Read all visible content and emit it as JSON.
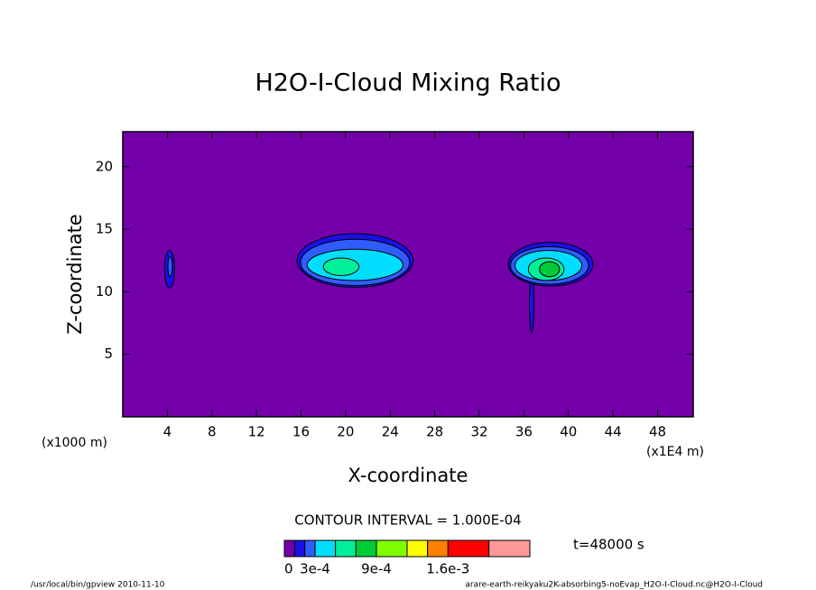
{
  "chart_data": {
    "type": "contour",
    "title": "H2O-I-Cloud Mixing Ratio",
    "xlabel": "X-coordinate",
    "ylabel": "Z-coordinate",
    "x_unit_left": "(x1000 m)",
    "x_unit_right": "(x1E4 m)",
    "contour_interval": "CONTOUR INTERVAL = 1.000E-04",
    "time": "t=48000 s",
    "footer_left": "/usr/local/bin/gpview  2010-11-10",
    "footer_right": "arare-earth-reikyaku2K-absorbing5-noEvap_H2O-I-Cloud.nc@H2O-I-Cloud",
    "xlim": [
      0,
      51.2
    ],
    "ylim": [
      0,
      22.8
    ],
    "xticks": [
      4,
      8,
      12,
      16,
      20,
      24,
      28,
      32,
      36,
      40,
      44,
      48
    ],
    "yticks": [
      5,
      10,
      15,
      20
    ],
    "levels": [
      0,
      0.0001,
      0.0002,
      0.0003,
      0.0005,
      0.0007,
      0.0009,
      0.0012,
      0.0014,
      0.0016,
      0.002,
      0.0024
    ],
    "colors": [
      "#7400aa",
      "#1a10e6",
      "#2f5cff",
      "#00ddff",
      "#00f09a",
      "#00cc3a",
      "#80ff00",
      "#ffff00",
      "#ff8000",
      "#ff0000",
      "#ff9999"
    ],
    "colorbar_ticks": [
      0,
      {
        "value": 0.0003,
        "label": "3e-4"
      },
      {
        "value": 0.0009,
        "label": "9e-4"
      },
      {
        "value": 0.0016,
        "label": "1.6e-3"
      }
    ],
    "regions": [
      {
        "x": 4.2,
        "z": 11.8,
        "rx": 0.45,
        "rz": 1.5,
        "value": 0.00015
      },
      {
        "x": 4.25,
        "z": 12.0,
        "rx": 0.2,
        "rz": 0.8,
        "value": 0.00025
      },
      {
        "x": 20.85,
        "z": 12.5,
        "rx": 5.2,
        "rz": 2.15,
        "value": 0.00015
      },
      {
        "x": 20.85,
        "z": 12.35,
        "rx": 4.9,
        "rz": 1.85,
        "value": 0.00025
      },
      {
        "x": 20.85,
        "z": 12.15,
        "rx": 4.3,
        "rz": 1.25,
        "value": 0.0004
      },
      {
        "x": 19.6,
        "z": 12.0,
        "rx": 1.6,
        "rz": 0.7,
        "value": 0.0006
      },
      {
        "x": 38.4,
        "z": 12.2,
        "rx": 3.8,
        "rz": 1.75,
        "value": 0.00015
      },
      {
        "x": 36.7,
        "z": 9.0,
        "rx": 0.2,
        "rz": 2.3,
        "value": 0.00015
      },
      {
        "x": 38.3,
        "z": 12.1,
        "rx": 3.5,
        "rz": 1.5,
        "value": 0.00025
      },
      {
        "x": 38.2,
        "z": 12.1,
        "rx": 3.0,
        "rz": 1.2,
        "value": 0.0004
      },
      {
        "x": 38.0,
        "z": 11.8,
        "rx": 1.6,
        "rz": 0.9,
        "value": 0.0006
      },
      {
        "x": 38.3,
        "z": 11.8,
        "rx": 0.9,
        "rz": 0.6,
        "value": 0.0008
      }
    ]
  }
}
